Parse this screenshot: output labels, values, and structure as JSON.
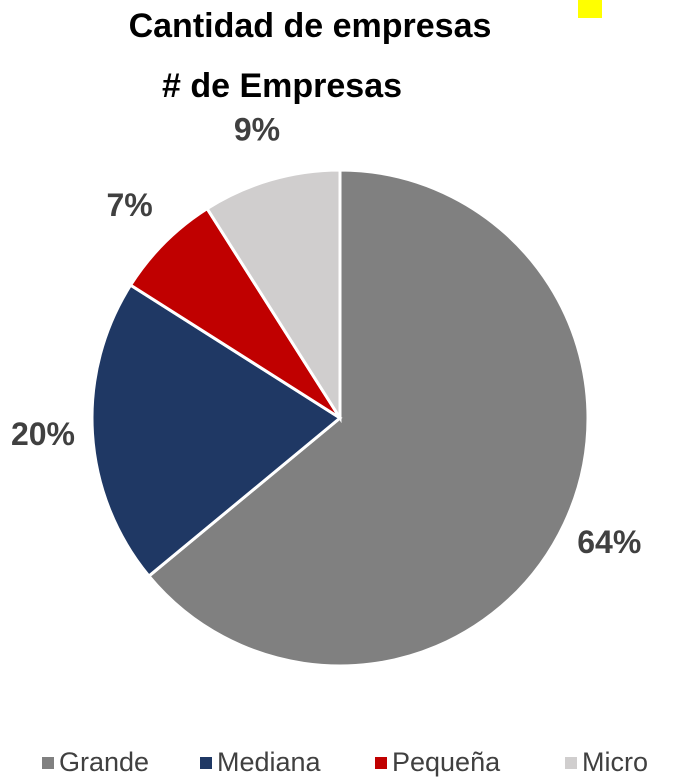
{
  "chart_data": {
    "type": "pie",
    "title": "Cantidad de empresas",
    "subtitle": "# de Empresas",
    "categories": [
      "Grande",
      "Mediana",
      "Pequeña",
      "Micro"
    ],
    "values": [
      64,
      20,
      7,
      9
    ],
    "value_labels": [
      "64%",
      "20%",
      "7%",
      "9%"
    ],
    "colors": [
      "#808080",
      "#1f3864",
      "#c00000",
      "#d0cece"
    ],
    "legend": "bottom"
  }
}
